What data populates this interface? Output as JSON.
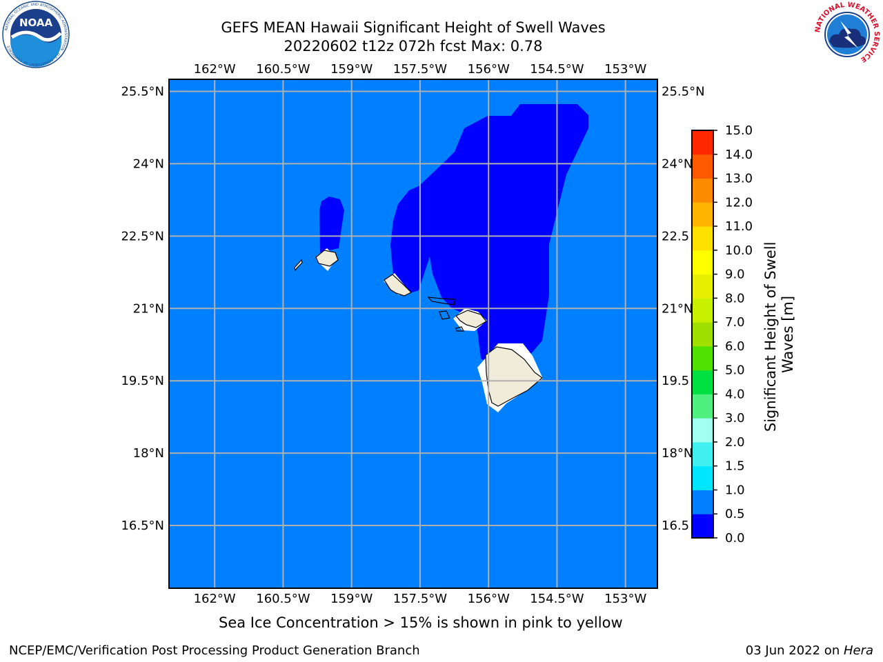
{
  "header": {
    "title_line1": "GEFS MEAN Hawaii Significant Height of Swell Waves",
    "title_line2": "20220602 t12z 072h fcst   Max: 0.78"
  },
  "logos": {
    "left": {
      "icon": "noaa-logo-icon",
      "text": "NOAA",
      "ring_text": "NATIONAL OCEANIC AND ATMOSPHERIC ADMINISTRATION · U.S. DEPARTMENT OF COMMERCE"
    },
    "right": {
      "icon": "nws-logo-icon",
      "ring_text": "NATIONAL WEATHER SERVICE"
    }
  },
  "map": {
    "region": "Hawaii",
    "longitude_ticks": [
      "162°W",
      "160.5°W",
      "159°W",
      "157.5°W",
      "156°W",
      "154.5°W",
      "153°W"
    ],
    "latitude_ticks": [
      "25.5°N",
      "24°N",
      "22.5°N",
      "21°N",
      "19.5°N",
      "18°N",
      "16.5°N"
    ],
    "latitude_ticks_right": [
      "25.5°N",
      "24°N",
      "22.5",
      "21°N",
      "19.5",
      "18°N",
      "16.5"
    ],
    "lon_range": [
      -163,
      -152.3
    ],
    "lat_range": [
      15.2,
      25.75
    ],
    "grid": true,
    "colors": {
      "ocean_background": "#0080ff",
      "swell_low_band": "#0000ff",
      "land": "#f0ecd9",
      "masked": "#ffffff",
      "gridline": "#b0b0b0"
    }
  },
  "colorbar": {
    "label": "Significant Height of Swell Waves [m]",
    "label_line1": "Significant Height of Swell",
    "label_line2": "Waves [m]",
    "tick_labels": [
      "0.0",
      "0.5",
      "1.0",
      "1.5",
      "2.0",
      "3.0",
      "4.0",
      "5.0",
      "6.0",
      "7.0",
      "8.0",
      "9.0",
      "10.0",
      "11.0",
      "12.0",
      "13.0",
      "14.0",
      "15.0"
    ],
    "colors": [
      "#0000ff",
      "#0080ff",
      "#00e6ff",
      "#40f0f0",
      "#a0fff0",
      "#50f080",
      "#00e040",
      "#50e000",
      "#a0e000",
      "#c8f000",
      "#e6f000",
      "#ffff00",
      "#ffe000",
      "#ffb400",
      "#ff8c00",
      "#ff5a00",
      "#ff2800",
      "#ff0000"
    ]
  },
  "chart_data": {
    "type": "heatmap",
    "title": "GEFS MEAN Hawaii Significant Height of Swell Waves",
    "subtitle": "20220602 t12z 072h fcst   Max: 0.78",
    "max_value": 0.78,
    "units": "m",
    "levels": [
      0.0,
      0.5,
      1.0,
      1.5,
      2.0,
      3.0,
      4.0,
      5.0,
      6.0,
      7.0,
      8.0,
      9.0,
      10.0,
      11.0,
      12.0,
      13.0,
      14.0,
      15.0
    ],
    "legend_placement": "right"
  },
  "notes": {
    "sea_ice": "Sea Ice Concentration > 15% is shown in pink to yellow"
  },
  "footer": {
    "left": "NCEP/EMC/Verification Post Processing Product Generation Branch",
    "right_date": "03 Jun 2022 on ",
    "right_host": "Hera"
  }
}
